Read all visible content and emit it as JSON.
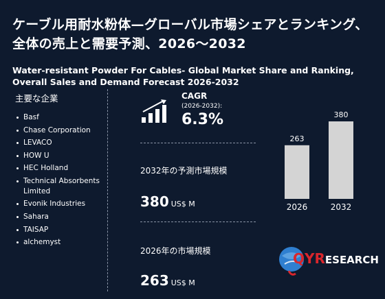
{
  "title_jp": "ケーブル用耐水粉体—グローバル市場シェアとランキング、全体の売上と需要予測、2026～2032",
  "title_en": "Water-resistant Powder For Cables- Global Market Share and Ranking, Overall Sales and Demand Forecast 2026-2032",
  "companies": {
    "heading": "主要な企業",
    "items": [
      "Basf",
      "Chase Corporation",
      "LEVACO",
      "HOW U",
      "HEC Holland",
      "Technical Absorbents Limited",
      "Evonik Industries",
      "Sahara",
      "TAISAP",
      "alchemyst"
    ]
  },
  "cagr": {
    "label": "CAGR",
    "period": "(2026-2032):",
    "value": "6.3%"
  },
  "market_2032": {
    "label": "2032年の予測市場規模",
    "value": "380",
    "unit": "US$ M"
  },
  "market_2026": {
    "label": "2026年の市場規模",
    "value": "263",
    "unit": "US$ M"
  },
  "chart_data": {
    "type": "bar",
    "categories": [
      "2026",
      "2032"
    ],
    "values": [
      263,
      380
    ],
    "data_labels": [
      "263",
      "380"
    ],
    "bar_color": "#d4d4d4"
  },
  "logo": {
    "left": "QYR",
    "right": "ESEARCH"
  },
  "colors": {
    "background": "#0e1a2e",
    "text": "#ffffff",
    "logo_red": "#d9262c",
    "logo_blue": "#2f7fd0"
  },
  "icons": {
    "growth": "growth-chart-icon"
  }
}
